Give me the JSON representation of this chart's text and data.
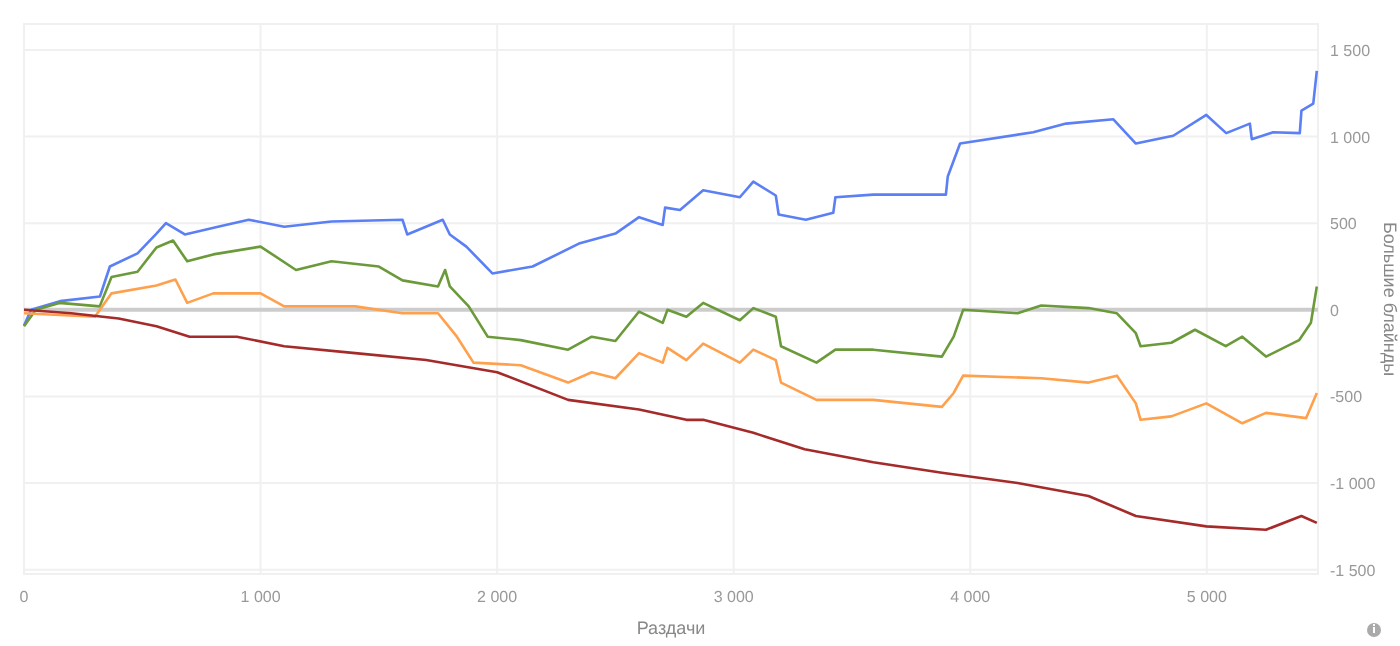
{
  "chart_data": {
    "type": "line",
    "xlabel": "Раздачи",
    "ylabel": "Большие блайнды",
    "xlim": [
      0,
      5470
    ],
    "ylim": [
      -1525,
      1650
    ],
    "xticks": [
      0,
      {
        "value": 1000,
        "label": "1 000"
      },
      {
        "value": 2000,
        "label": "2 000"
      },
      {
        "value": 3000,
        "label": "3 000"
      },
      {
        "value": 4000,
        "label": "4 000"
      },
      {
        "value": 5000,
        "label": "5 000"
      }
    ],
    "yticks": [
      {
        "value": -1500,
        "label": "-1 500"
      },
      {
        "value": -1000,
        "label": "-1 000"
      },
      -500,
      0,
      500,
      {
        "value": 1000,
        "label": "1 000"
      },
      {
        "value": 1500,
        "label": "1 500"
      }
    ],
    "grid": true,
    "line_style": "solid",
    "ref_lines": [
      {
        "axis": "y",
        "value": 0,
        "color": "#cccccc"
      }
    ],
    "series": [
      {
        "color": "#5b7ff5",
        "x": [
          0,
          30,
          152,
          321,
          363,
          480,
          560,
          600,
          680,
          820,
          950,
          1100,
          1300,
          1600,
          1620,
          1770,
          1800,
          1870,
          1980,
          2150,
          2350,
          2500,
          2600,
          2700,
          2710,
          2773,
          2871,
          3026,
          3083,
          3178,
          3190,
          3305,
          3421,
          3430,
          3590,
          3897,
          3905,
          3957,
          4266,
          4405,
          4605,
          4700,
          4858,
          4998,
          5082,
          5182,
          5190,
          5280,
          5393,
          5400,
          5450,
          5465
        ],
        "values": [
          -90,
          0,
          50,
          77,
          250,
          326,
          440,
          500,
          435,
          480,
          520,
          480,
          510,
          520,
          435,
          520,
          435,
          365,
          210,
          250,
          385,
          440,
          535,
          490,
          590,
          576,
          690,
          650,
          740,
          660,
          550,
          520,
          560,
          650,
          665,
          665,
          770,
          960,
          1025,
          1075,
          1100,
          960,
          1005,
          1125,
          1020,
          1075,
          985,
          1025,
          1020,
          1150,
          1190,
          1380
        ]
      },
      {
        "color": "#6b9a3a",
        "x": [
          0,
          50,
          150,
          320,
          370,
          480,
          560,
          630,
          690,
          800,
          1000,
          1150,
          1300,
          1500,
          1600,
          1750,
          1780,
          1800,
          1880,
          1960,
          2100,
          2300,
          2400,
          2500,
          2600,
          2700,
          2720,
          2800,
          2871,
          3026,
          3083,
          3178,
          3200,
          3350,
          3430,
          3590,
          3880,
          3930,
          3970,
          4200,
          4300,
          4500,
          4620,
          4700,
          4720,
          4850,
          4950,
          5080,
          5150,
          5250,
          5390,
          5440,
          5465
        ],
        "values": [
          -95,
          0,
          40,
          20,
          190,
          220,
          360,
          400,
          280,
          320,
          365,
          230,
          280,
          250,
          170,
          135,
          230,
          135,
          20,
          -155,
          -175,
          -230,
          -155,
          -180,
          -10,
          -75,
          0,
          -40,
          40,
          -60,
          10,
          -40,
          -210,
          -305,
          -230,
          -230,
          -270,
          -155,
          0,
          -20,
          25,
          10,
          -20,
          -135,
          -210,
          -190,
          -115,
          -210,
          -155,
          -270,
          -175,
          -75,
          135
        ]
      },
      {
        "color": "#ffa04d",
        "x": [
          0,
          300,
          370,
          560,
          640,
          690,
          800,
          1000,
          1100,
          1400,
          1600,
          1750,
          1830,
          1900,
          2100,
          2300,
          2400,
          2500,
          2600,
          2700,
          2720,
          2800,
          2871,
          3026,
          3083,
          3178,
          3200,
          3350,
          3590,
          3880,
          3930,
          3970,
          4300,
          4500,
          4620,
          4700,
          4720,
          4850,
          4998,
          5150,
          5250,
          5420,
          5465
        ],
        "values": [
          -20,
          -40,
          95,
          140,
          175,
          40,
          95,
          95,
          20,
          20,
          -20,
          -20,
          -155,
          -305,
          -320,
          -420,
          -360,
          -395,
          -250,
          -305,
          -220,
          -290,
          -195,
          -305,
          -230,
          -290,
          -420,
          -520,
          -520,
          -560,
          -480,
          -380,
          -395,
          -420,
          -380,
          -540,
          -635,
          -615,
          -540,
          -655,
          -595,
          -625,
          -480
        ]
      },
      {
        "color": "#a52a2a",
        "x": [
          0,
          200,
          400,
          560,
          700,
          900,
          1100,
          1400,
          1700,
          2000,
          2300,
          2600,
          2800,
          2871,
          3083,
          3300,
          3590,
          3880,
          4200,
          4500,
          4700,
          4998,
          5250,
          5400,
          5465
        ],
        "values": [
          0,
          -20,
          -50,
          -95,
          -155,
          -155,
          -210,
          -250,
          -290,
          -360,
          -520,
          -575,
          -635,
          -635,
          -710,
          -805,
          -880,
          -940,
          -1000,
          -1075,
          -1190,
          -1250,
          -1270,
          -1190,
          -1230
        ]
      }
    ]
  }
}
